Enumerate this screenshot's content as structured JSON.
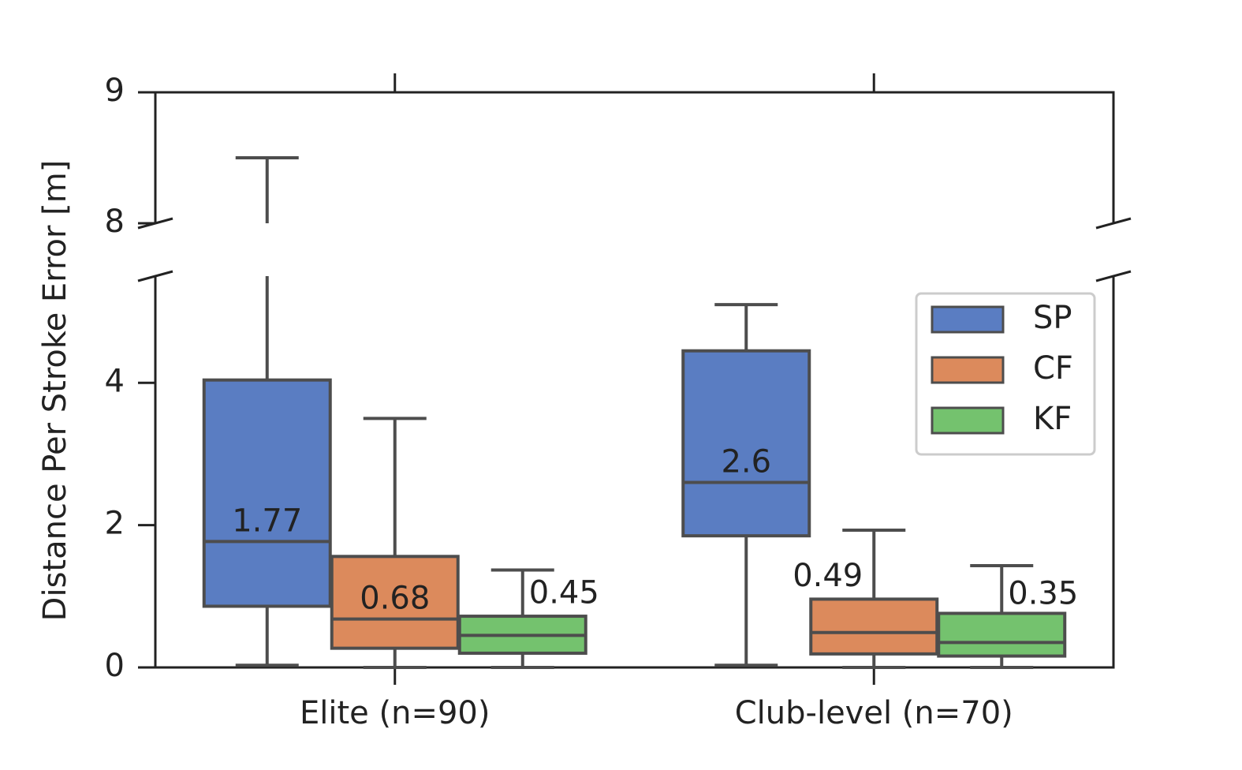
{
  "chart_data": {
    "type": "box",
    "y_label": "Distance Per Stroke Error [m]",
    "categories": [
      "Elite (n=90)",
      "Club-level (n=70)"
    ],
    "ylim": [
      0,
      5.5
    ],
    "yticks": [
      0,
      2,
      4
    ],
    "ylim_upper": [
      8,
      9
    ],
    "yticks_upper": [
      8,
      9
    ],
    "legend": "upper right",
    "series": [
      {
        "name": "SP",
        "color": "#5a7dc2",
        "whislo": [
          0.03,
          0.03
        ],
        "q1": [
          0.86,
          1.85
        ],
        "median": [
          1.77,
          2.6
        ],
        "q3": [
          4.04,
          4.45
        ],
        "whishi": [
          8.5,
          5.1
        ],
        "value_labels": [
          "1.77",
          "2.6"
        ]
      },
      {
        "name": "CF",
        "color": "#dc8a5c",
        "whislo": [
          0,
          0
        ],
        "q1": [
          0.27,
          0.19
        ],
        "median": [
          0.68,
          0.49
        ],
        "q3": [
          1.56,
          0.96
        ],
        "whishi": [
          3.5,
          1.93
        ],
        "value_labels": [
          "0.68",
          "0.49"
        ]
      },
      {
        "name": "KF",
        "color": "#74c26e",
        "whislo": [
          0,
          0
        ],
        "q1": [
          0.2,
          0.16
        ],
        "median": [
          0.45,
          0.35
        ],
        "q3": [
          0.72,
          0.76
        ],
        "whishi": [
          1.37,
          1.43
        ],
        "value_labels": [
          "0.45",
          "0.35"
        ]
      }
    ]
  }
}
